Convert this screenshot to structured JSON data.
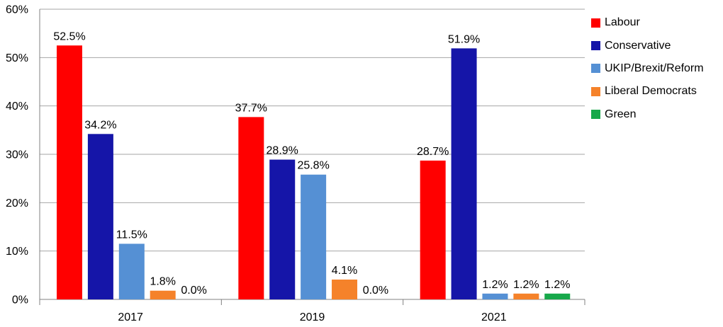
{
  "chart_data": {
    "type": "bar",
    "title": "",
    "xlabel": "",
    "ylabel": "",
    "categories": [
      "2017",
      "2019",
      "2021"
    ],
    "ylim": [
      0,
      60
    ],
    "yticks": [
      "0%",
      "10%",
      "20%",
      "30%",
      "40%",
      "50%",
      "60%"
    ],
    "grid": true,
    "legend_position": "right",
    "series": [
      {
        "name": "Labour",
        "color": "#ff0000",
        "values": [
          52.5,
          37.7,
          28.7
        ],
        "labels": [
          "52.5%",
          "37.7%",
          "28.7%"
        ]
      },
      {
        "name": "Conservative",
        "color": "#1515a8",
        "values": [
          34.2,
          28.9,
          51.9
        ],
        "labels": [
          "34.2%",
          "28.9%",
          "51.9%"
        ]
      },
      {
        "name": "UKIP/Brexit/Reform",
        "color": "#5590d4",
        "values": [
          11.5,
          25.8,
          1.2
        ],
        "labels": [
          "11.5%",
          "25.8%",
          "1.2%"
        ]
      },
      {
        "name": "Liberal Democrats",
        "color": "#f5822a",
        "values": [
          1.8,
          4.1,
          1.2
        ],
        "labels": [
          "1.8%",
          "4.1%",
          "1.2%"
        ]
      },
      {
        "name": "Green",
        "color": "#17a84a",
        "values": [
          0.0,
          0.0,
          1.2
        ],
        "labels": [
          "0.0%",
          "0.0%",
          "1.2%"
        ]
      }
    ]
  }
}
